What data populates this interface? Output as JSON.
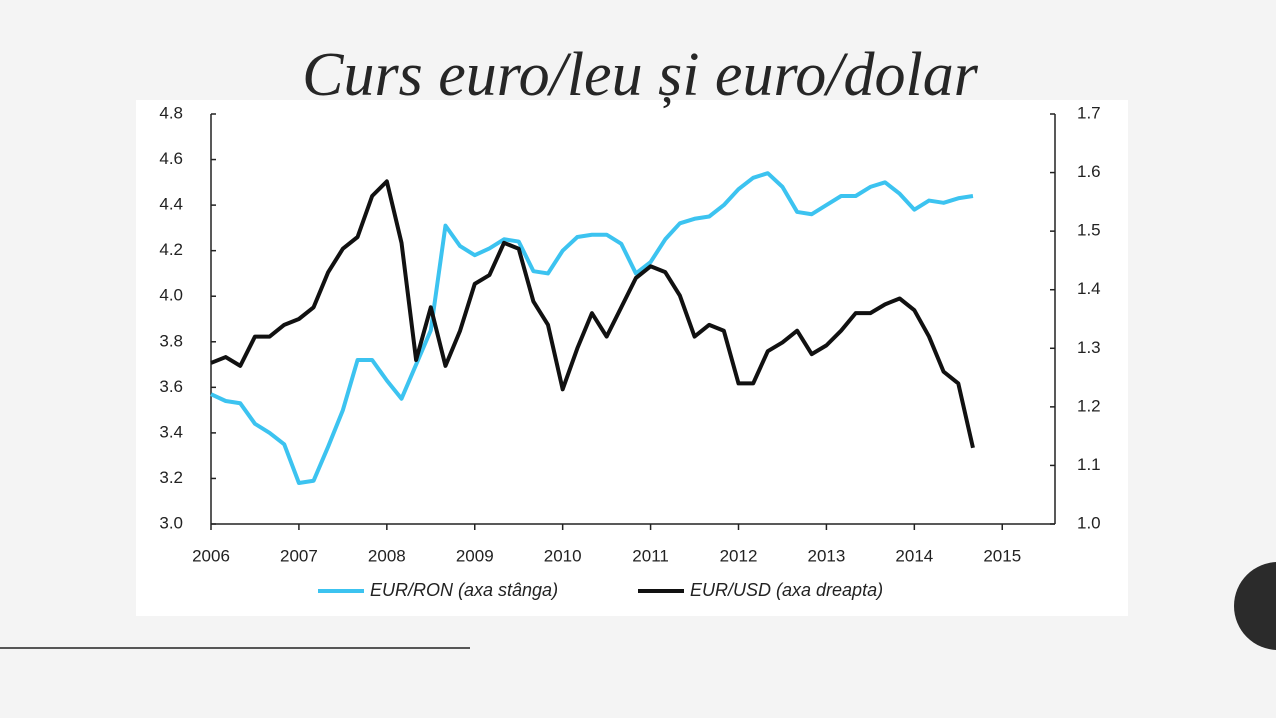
{
  "chart_data": {
    "type": "line",
    "title": "Curs euro/leu și euro/dolar",
    "x": [
      2006,
      2006.167,
      2006.333,
      2006.5,
      2006.667,
      2006.833,
      2007,
      2007.167,
      2007.333,
      2007.5,
      2007.667,
      2007.833,
      2008,
      2008.167,
      2008.333,
      2008.5,
      2008.667,
      2008.833,
      2009,
      2009.167,
      2009.333,
      2009.5,
      2009.667,
      2009.833,
      2010,
      2010.167,
      2010.333,
      2010.5,
      2010.667,
      2010.833,
      2011,
      2011.167,
      2011.333,
      2011.5,
      2011.667,
      2011.833,
      2012,
      2012.167,
      2012.333,
      2012.5,
      2012.667,
      2012.833,
      2013,
      2013.167,
      2013.333,
      2013.5,
      2013.667,
      2013.833,
      2014,
      2014.167,
      2014.333,
      2014.5,
      2014.667
    ],
    "series": [
      {
        "name": "EUR/RON (axa stânga)",
        "color": "#3cc3f0",
        "values": [
          3.57,
          3.54,
          3.53,
          3.44,
          3.4,
          3.35,
          3.18,
          3.19,
          3.34,
          3.5,
          3.72,
          3.72,
          3.63,
          3.55,
          3.7,
          3.85,
          4.31,
          4.22,
          4.18,
          4.21,
          4.25,
          4.24,
          4.11,
          4.1,
          4.2,
          4.26,
          4.27,
          4.27,
          4.23,
          4.1,
          4.15,
          4.25,
          4.32,
          4.34,
          4.35,
          4.4,
          4.47,
          4.52,
          4.54,
          4.48,
          4.37,
          4.36,
          4.4,
          4.44,
          4.44,
          4.48,
          4.5,
          4.45,
          4.38,
          4.42,
          4.41,
          4.43,
          4.44
        ]
      },
      {
        "name": "EUR/USD (axa dreapta)",
        "color": "#111111",
        "axis": "y2",
        "values": [
          1.275,
          1.285,
          1.27,
          1.32,
          1.32,
          1.34,
          1.35,
          1.37,
          1.43,
          1.47,
          1.49,
          1.56,
          1.585,
          1.48,
          1.28,
          1.37,
          1.27,
          1.33,
          1.41,
          1.425,
          1.48,
          1.47,
          1.38,
          1.34,
          1.23,
          1.3,
          1.36,
          1.32,
          1.37,
          1.42,
          1.44,
          1.43,
          1.39,
          1.32,
          1.34,
          1.33,
          1.24,
          1.24,
          1.295,
          1.31,
          1.33,
          1.29,
          1.305,
          1.33,
          1.36,
          1.36,
          1.375,
          1.385,
          1.365,
          1.32,
          1.26,
          1.24,
          1.13
        ]
      }
    ],
    "xlim": [
      2006,
      2015.6
    ],
    "xticks": [
      2006,
      2007,
      2008,
      2009,
      2010,
      2011,
      2012,
      2013,
      2014,
      2015
    ],
    "ylim": [
      3,
      4.8
    ],
    "yticks": [
      {
        "value": 3,
        "label": "3.0"
      },
      3.2,
      3.4,
      3.6,
      3.8,
      {
        "value": 4,
        "label": "4.0"
      },
      4.2,
      4.4,
      4.6,
      4.8
    ],
    "y2lim": [
      1,
      1.7
    ],
    "y2ticks": [
      {
        "value": 1,
        "label": "1.0"
      },
      1.1,
      1.2,
      1.3,
      1.4,
      1.5,
      1.6,
      1.7
    ],
    "legend": "bottom"
  }
}
